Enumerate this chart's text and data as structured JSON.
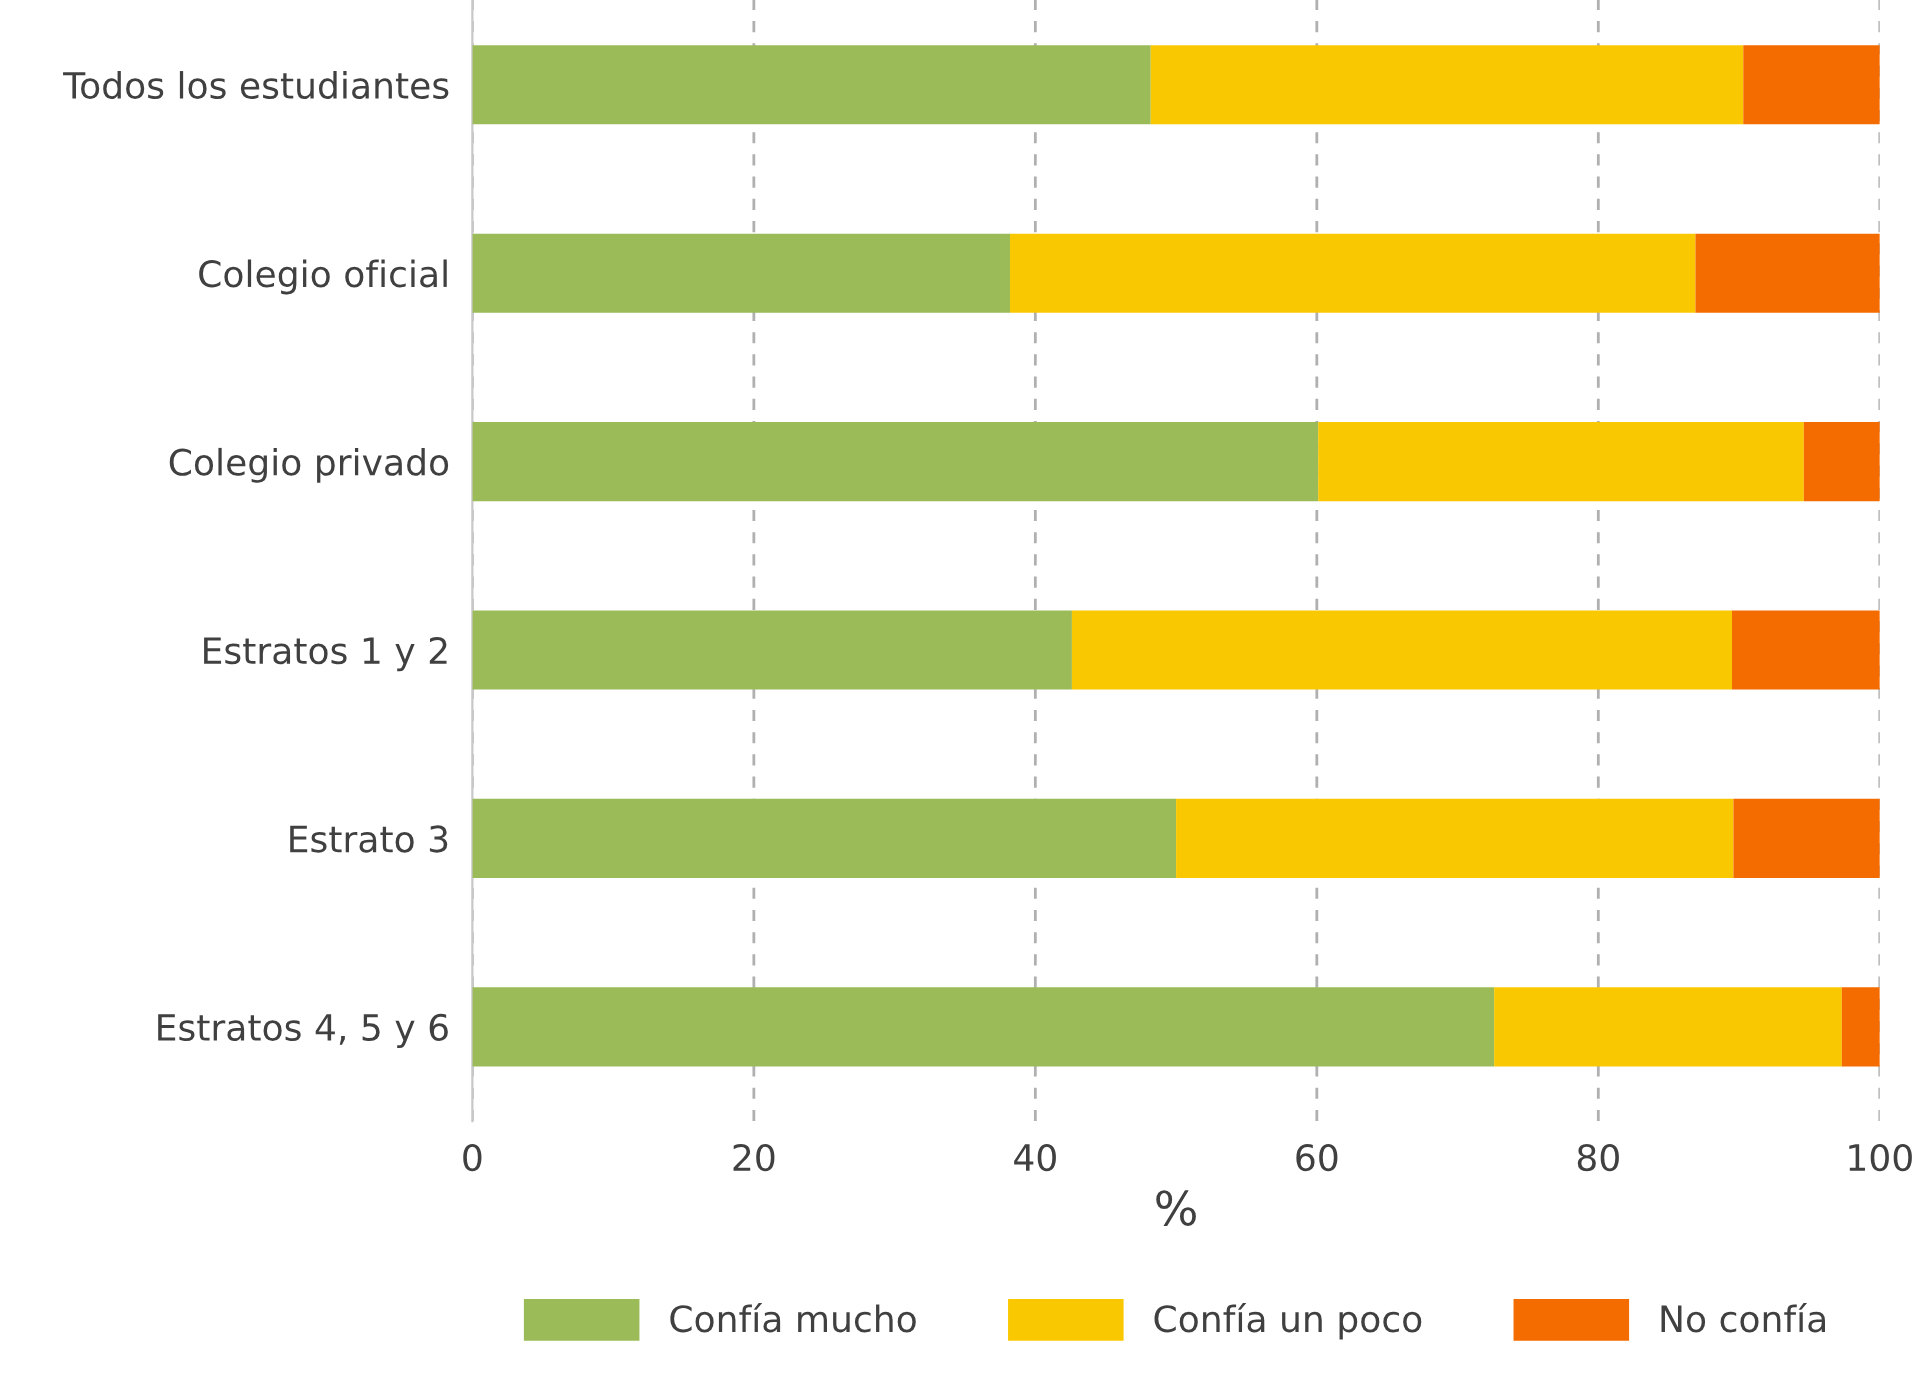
{
  "chart_data": {
    "type": "bar",
    "orientation": "horizontal",
    "stacked": true,
    "xlabel": "%",
    "categories": [
      "Todos los estudiantes",
      "Colegio oficial",
      "Colegio privado",
      "Estratos 1 y 2",
      "Estrato 3",
      "Estratos 4, 5 y 6"
    ],
    "series": [
      {
        "name": "Confía mucho",
        "color": "#9bbb59",
        "values": [
          48.2,
          38.2,
          60.1,
          42.6,
          50.0,
          72.6
        ]
      },
      {
        "name": "Confía un poco",
        "color": "#fac800",
        "values": [
          42.1,
          48.7,
          34.5,
          46.9,
          39.6,
          24.7
        ]
      },
      {
        "name": "No confía",
        "color": "#f46b00",
        "values": [
          9.7,
          13.1,
          5.4,
          10.5,
          10.4,
          2.7
        ]
      }
    ],
    "xlim": [
      0,
      100
    ],
    "xticks": [
      0,
      20,
      40,
      60,
      80,
      100
    ],
    "grid": "x",
    "legend": "bottom"
  }
}
